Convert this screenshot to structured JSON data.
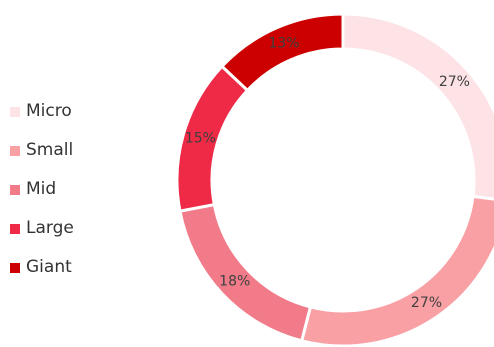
{
  "chart_data": {
    "type": "pie",
    "variant": "donut",
    "categories": [
      "Micro",
      "Small",
      "Mid",
      "Large",
      "Giant"
    ],
    "values": [
      27,
      27,
      18,
      15,
      13
    ],
    "value_labels": [
      "27%",
      "27%",
      "18%",
      "15%",
      "13%"
    ],
    "colors": [
      "#fde2e6",
      "#f9a0a4",
      "#f27b8a",
      "#ee2a47",
      "#cc0000"
    ],
    "legend_position": "left",
    "start_angle": "top",
    "direction": "clockwise"
  },
  "legend": {
    "items": [
      {
        "label": "Micro",
        "color": "#fde2e6"
      },
      {
        "label": "Small",
        "color": "#f9a0a4"
      },
      {
        "label": "Mid",
        "color": "#f27b8a"
      },
      {
        "label": "Large",
        "color": "#ee2a47"
      },
      {
        "label": "Giant",
        "color": "#cc0000"
      }
    ]
  }
}
